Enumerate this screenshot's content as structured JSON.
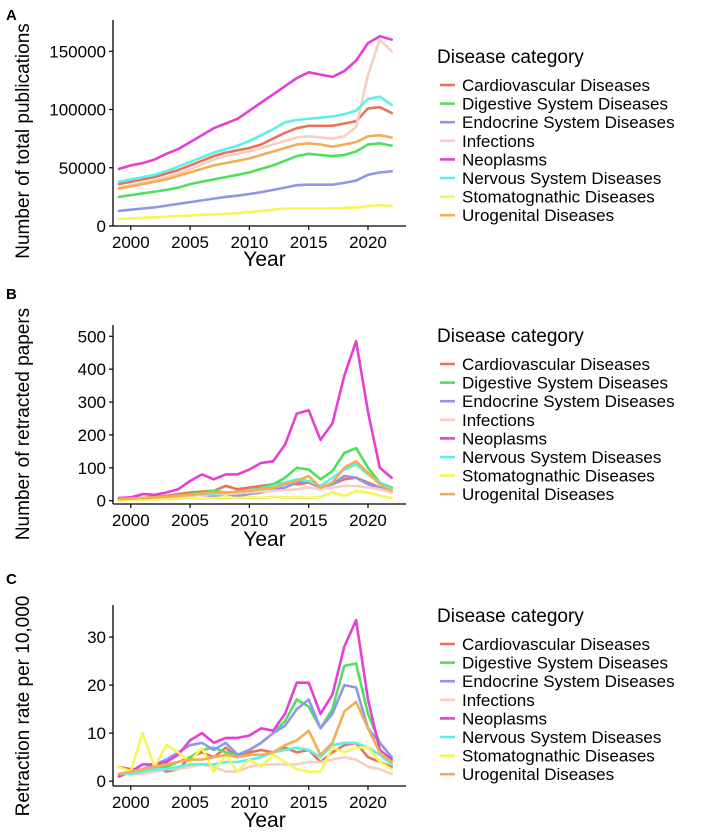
{
  "legend_colors": {
    "Cardiovascular Diseases": "#e8735a",
    "Digestive System Diseases": "#4fe05a",
    "Endocrine System Diseases": "#8f96ec",
    "Infections": "#f6cfc1",
    "Neoplasms": "#e63fd6",
    "Nervous System Diseases": "#5cf0ea",
    "Stomatognathic Diseases": "#f6f55a",
    "Urogenital Diseases": "#f5ad54"
  },
  "chart_data": [
    {
      "panel_label": "A",
      "type": "line",
      "title": "",
      "xlabel": "Year",
      "ylabel": "Number of total publications",
      "xlim": [
        1998.5,
        2022.7
      ],
      "ylim": [
        0,
        170000
      ],
      "xticks": [
        2000,
        2005,
        2010,
        2015,
        2020
      ],
      "yticks": [
        0,
        50000,
        100000,
        150000
      ],
      "ytick_labels": [
        "0",
        "50000",
        "100000",
        "150000"
      ],
      "legend_title": "Disease category",
      "x": [
        1999,
        2000,
        2001,
        2002,
        2003,
        2004,
        2005,
        2006,
        2007,
        2008,
        2009,
        2010,
        2011,
        2012,
        2013,
        2014,
        2015,
        2016,
        2017,
        2018,
        2019,
        2020,
        2021,
        2022
      ],
      "series": [
        {
          "name": "Cardiovascular Diseases",
          "values": [
            36000,
            38000,
            40000,
            42000,
            45000,
            48000,
            52000,
            56000,
            60000,
            63000,
            65000,
            67000,
            70000,
            75000,
            80000,
            84000,
            86000,
            86000,
            86000,
            88000,
            90000,
            101000,
            102000,
            97000
          ]
        },
        {
          "name": "Digestive System Diseases",
          "values": [
            25000,
            26500,
            28000,
            29500,
            31000,
            33000,
            36000,
            38000,
            40000,
            42000,
            44000,
            46000,
            49000,
            52000,
            56000,
            60000,
            62000,
            61000,
            60000,
            61000,
            64000,
            70000,
            71000,
            69000
          ]
        },
        {
          "name": "Endocrine System Diseases",
          "values": [
            13000,
            14000,
            15000,
            16000,
            17500,
            19000,
            20500,
            22000,
            23500,
            25000,
            26000,
            27500,
            29000,
            31000,
            33000,
            35000,
            35500,
            35500,
            35500,
            37000,
            39000,
            44000,
            46000,
            47000
          ]
        },
        {
          "name": "Infections",
          "values": [
            33000,
            35000,
            37000,
            39000,
            42000,
            45000,
            49000,
            53000,
            57000,
            60000,
            62000,
            64000,
            67000,
            70000,
            73000,
            76000,
            77000,
            76000,
            75000,
            77000,
            85000,
            130000,
            160000,
            150000
          ]
        },
        {
          "name": "Neoplasms",
          "values": [
            49000,
            52000,
            54000,
            57000,
            62000,
            66000,
            72000,
            78000,
            84000,
            88000,
            92000,
            99000,
            106000,
            113000,
            120000,
            127000,
            132000,
            130000,
            128000,
            133000,
            142000,
            157000,
            163000,
            160000
          ]
        },
        {
          "name": "Nervous System Diseases",
          "values": [
            38000,
            40000,
            42000,
            44000,
            47000,
            51000,
            55000,
            59000,
            63000,
            66000,
            69000,
            73000,
            78000,
            83000,
            89000,
            91000,
            92000,
            93000,
            94000,
            96000,
            99000,
            109000,
            111000,
            104000
          ]
        },
        {
          "name": "Stomatognathic Diseases",
          "values": [
            6000,
            6500,
            7000,
            7500,
            8000,
            8500,
            9000,
            9500,
            10000,
            10500,
            11000,
            12000,
            13000,
            14000,
            15000,
            15000,
            15000,
            15000,
            15000,
            15500,
            16000,
            17000,
            18000,
            17000
          ]
        },
        {
          "name": "Urogenital Diseases",
          "values": [
            32000,
            34000,
            36000,
            38000,
            40000,
            43000,
            46000,
            49000,
            52000,
            54000,
            56000,
            58000,
            61000,
            64000,
            67000,
            70000,
            71000,
            70000,
            68000,
            70000,
            72000,
            77000,
            78000,
            76000
          ]
        }
      ]
    },
    {
      "panel_label": "B",
      "type": "line",
      "title": "",
      "xlabel": "Year",
      "ylabel": "Number of retracted papers",
      "xlim": [
        1998.5,
        2022.7
      ],
      "ylim": [
        -10,
        510
      ],
      "xticks": [
        2000,
        2005,
        2010,
        2015,
        2020
      ],
      "yticks": [
        0,
        100,
        200,
        300,
        400,
        500
      ],
      "ytick_labels": [
        "0",
        "100",
        "200",
        "300",
        "400",
        "500"
      ],
      "legend_title": "Disease category",
      "x": [
        1999,
        2000,
        2001,
        2002,
        2003,
        2004,
        2005,
        2006,
        2007,
        2008,
        2009,
        2010,
        2011,
        2012,
        2013,
        2014,
        2015,
        2016,
        2017,
        2018,
        2019,
        2020,
        2021,
        2022
      ],
      "series": [
        {
          "name": "Cardiovascular Diseases",
          "values": [
            8,
            10,
            8,
            12,
            15,
            20,
            25,
            28,
            30,
            45,
            35,
            40,
            45,
            50,
            55,
            50,
            55,
            40,
            50,
            65,
            70,
            55,
            40,
            30
          ]
        },
        {
          "name": "Digestive System Diseases",
          "values": [
            3,
            5,
            5,
            8,
            10,
            15,
            20,
            25,
            30,
            25,
            25,
            30,
            40,
            50,
            70,
            100,
            95,
            65,
            90,
            145,
            160,
            100,
            55,
            40
          ]
        },
        {
          "name": "Endocrine System Diseases",
          "values": [
            2,
            3,
            4,
            6,
            8,
            10,
            15,
            18,
            15,
            20,
            15,
            20,
            25,
            35,
            40,
            55,
            60,
            40,
            50,
            75,
            70,
            50,
            40,
            30
          ]
        },
        {
          "name": "Infections",
          "values": [
            5,
            5,
            6,
            8,
            10,
            12,
            15,
            18,
            20,
            20,
            22,
            25,
            28,
            30,
            32,
            35,
            40,
            35,
            40,
            45,
            45,
            40,
            35,
            25
          ]
        },
        {
          "name": "Neoplasms",
          "values": [
            8,
            10,
            20,
            18,
            25,
            35,
            60,
            80,
            65,
            80,
            80,
            95,
            115,
            120,
            170,
            265,
            275,
            185,
            235,
            380,
            485,
            270,
            100,
            70
          ]
        },
        {
          "name": "Nervous System Diseases",
          "values": [
            5,
            6,
            8,
            10,
            12,
            15,
            18,
            20,
            22,
            25,
            28,
            32,
            35,
            45,
            55,
            65,
            60,
            45,
            70,
            95,
            110,
            80,
            55,
            35
          ]
        },
        {
          "name": "Stomatognathic Diseases",
          "values": [
            3,
            3,
            3,
            4,
            5,
            6,
            8,
            6,
            8,
            10,
            8,
            10,
            8,
            12,
            10,
            10,
            8,
            12,
            25,
            15,
            30,
            25,
            15,
            8
          ]
        },
        {
          "name": "Urogenital Diseases",
          "values": [
            5,
            6,
            8,
            10,
            12,
            15,
            18,
            22,
            25,
            25,
            28,
            30,
            35,
            40,
            50,
            60,
            75,
            40,
            55,
            100,
            120,
            85,
            50,
            30
          ]
        }
      ]
    },
    {
      "panel_label": "C",
      "type": "line",
      "title": "",
      "xlabel": "Year",
      "ylabel": "Retraction rate per 10,000",
      "xlim": [
        1998.5,
        2022.7
      ],
      "ylim": [
        -1,
        35
      ],
      "xticks": [
        2000,
        2005,
        2010,
        2015,
        2020
      ],
      "yticks": [
        0,
        10,
        20,
        30
      ],
      "ytick_labels": [
        "0",
        "10",
        "20",
        "30"
      ],
      "legend_title": "Disease category",
      "x": [
        1999,
        2000,
        2001,
        2002,
        2003,
        2004,
        2005,
        2006,
        2007,
        2008,
        2009,
        2010,
        2011,
        2012,
        2013,
        2014,
        2015,
        2016,
        2017,
        2018,
        2019,
        2020,
        2021,
        2022
      ],
      "series": [
        {
          "name": "Cardiovascular Diseases",
          "values": [
            3,
            2.5,
            2,
            3,
            2,
            2.5,
            5,
            6,
            5,
            7,
            5,
            6,
            6.5,
            6,
            7,
            6,
            6.5,
            4,
            6,
            7.5,
            8,
            5,
            4,
            3
          ]
        },
        {
          "name": "Digestive System Diseases",
          "values": [
            1,
            2,
            2,
            3,
            3,
            4,
            5,
            6.5,
            7,
            6,
            5.5,
            6.5,
            8,
            10,
            12.5,
            17,
            15.5,
            11,
            15,
            24,
            24.5,
            14,
            8,
            5
          ]
        },
        {
          "name": "Endocrine System Diseases",
          "values": [
            1.5,
            2,
            2.5,
            3.5,
            4.5,
            6,
            7.5,
            8,
            6.5,
            8,
            5.5,
            6.5,
            8,
            10,
            11.5,
            15,
            17,
            11,
            14,
            20,
            19.5,
            11,
            8,
            5
          ]
        },
        {
          "name": "Infections",
          "values": [
            1.5,
            1.5,
            1.5,
            2,
            2.5,
            2.5,
            3,
            3.5,
            3,
            2,
            2,
            3,
            3.5,
            3.5,
            3.5,
            3.5,
            4,
            4,
            4.5,
            5,
            4.5,
            3,
            2.5,
            1.5
          ]
        },
        {
          "name": "Neoplasms",
          "values": [
            1,
            2,
            3.5,
            3.5,
            4,
            5.5,
            8.5,
            10,
            8,
            9,
            9,
            9.5,
            11,
            10.5,
            14,
            20.5,
            20.5,
            14,
            18,
            28,
            33.5,
            17,
            6.5,
            4.5
          ]
        },
        {
          "name": "Nervous System Diseases",
          "values": [
            1.5,
            1.5,
            2,
            2.5,
            2.5,
            3,
            3.5,
            3.5,
            3.5,
            4,
            4,
            4.5,
            5,
            6,
            6.5,
            7,
            6.5,
            5,
            7.5,
            8,
            8,
            7,
            5.5,
            3.5
          ]
        },
        {
          "name": "Stomatognathic Diseases",
          "values": [
            3,
            2,
            10,
            3,
            7.5,
            6,
            4,
            7,
            2,
            5.5,
            2,
            4.5,
            3,
            5.5,
            4,
            2.5,
            2,
            2,
            7,
            6,
            7,
            7,
            4,
            2.5
          ]
        },
        {
          "name": "Urogenital Diseases",
          "values": [
            1.5,
            2,
            2.5,
            3,
            3.5,
            4,
            4.5,
            4.5,
            5,
            5.5,
            5,
            5.5,
            5.5,
            6,
            7.5,
            8.5,
            10.5,
            5.5,
            8,
            14.5,
            16.5,
            11,
            6,
            4
          ]
        }
      ]
    }
  ]
}
